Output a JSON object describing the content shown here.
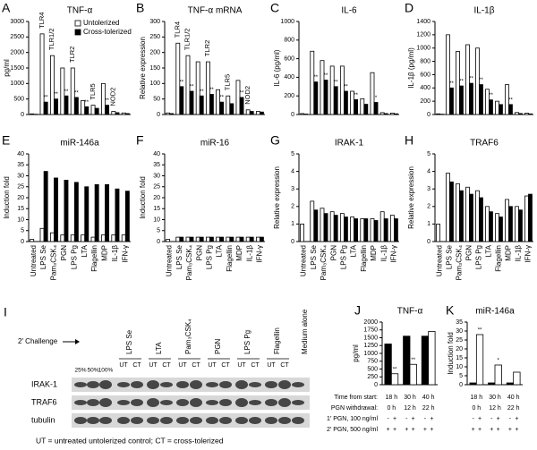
{
  "chart_data": [
    {
      "type": "bar",
      "panel": "A",
      "title": "TNF-α",
      "ylabel": "pg/ml",
      "ylim": [
        0,
        3000
      ],
      "yticks": [
        0,
        500,
        1000,
        1500,
        2000,
        2500,
        3000
      ],
      "categories": [
        null,
        null,
        null,
        null,
        null,
        null,
        null,
        null,
        null,
        null
      ],
      "legend": "top-right",
      "annotations": [
        "TLR4",
        "TLR1/2",
        "TLR2",
        "TLR5",
        "NOD2"
      ],
      "series": [
        {
          "name": "Untolerized",
          "color": "#ffffff",
          "values": [
            20,
            2600,
            1900,
            1500,
            1500,
            450,
            300,
            1000,
            100,
            50
          ]
        },
        {
          "name": "Cross-tolerized",
          "color": "#000000",
          "values": [
            10,
            400,
            500,
            600,
            550,
            250,
            200,
            300,
            60,
            30
          ],
          "significance": [
            null,
            "**",
            "**",
            "**",
            "**",
            "**",
            null,
            "**",
            null,
            null
          ]
        }
      ]
    },
    {
      "type": "bar",
      "panel": "B",
      "title": "TNF-α mRNA",
      "ylabel": "Relative expression",
      "ylim": [
        0,
        300
      ],
      "yticks": [
        0,
        50,
        100,
        150,
        200,
        250,
        300
      ],
      "categories": [
        null,
        null,
        null,
        null,
        null,
        null,
        null,
        null,
        null,
        null
      ],
      "annotations": [
        "TLR4",
        "TLR1/2",
        "TLR2",
        "TLR5",
        "NOD2"
      ],
      "series": [
        {
          "color": "#ffffff",
          "values": [
            5,
            230,
            190,
            170,
            170,
            80,
            60,
            110,
            15,
            10
          ]
        },
        {
          "color": "#000000",
          "values": [
            3,
            90,
            75,
            60,
            65,
            40,
            35,
            55,
            10,
            8
          ],
          "significance": [
            null,
            "**",
            "**",
            "**",
            "**",
            "**",
            null,
            "**",
            null,
            null
          ]
        }
      ]
    },
    {
      "type": "bar",
      "panel": "C",
      "title": "IL-6",
      "ylabel": "IL-6 (pg/ml)",
      "ylim": [
        0,
        1000
      ],
      "yticks": [
        0,
        200,
        400,
        600,
        800,
        1000
      ],
      "categories": [
        null,
        null,
        null,
        null,
        null,
        null,
        null,
        null,
        null,
        null
      ],
      "series": [
        {
          "color": "#ffffff",
          "values": [
            10,
            680,
            580,
            520,
            520,
            250,
            170,
            450,
            20,
            15
          ]
        },
        {
          "color": "#000000",
          "values": [
            5,
            350,
            370,
            300,
            250,
            160,
            110,
            130,
            10,
            8
          ],
          "significance": [
            null,
            "**",
            "**",
            "**",
            "**",
            "**",
            null,
            "*",
            null,
            null
          ]
        }
      ]
    },
    {
      "type": "bar",
      "panel": "D",
      "title": "IL-1β",
      "ylabel": "IL-1β (pg/ml)",
      "ylim": [
        0,
        1400
      ],
      "yticks": [
        0,
        200,
        400,
        600,
        800,
        1000,
        1200,
        1400
      ],
      "categories": [
        null,
        null,
        null,
        null,
        null,
        null,
        null,
        null,
        null,
        null
      ],
      "series": [
        {
          "color": "#ffffff",
          "values": [
            10,
            1200,
            950,
            1050,
            1000,
            380,
            200,
            450,
            30,
            20
          ]
        },
        {
          "color": "#000000",
          "values": [
            5,
            400,
            430,
            470,
            450,
            220,
            150,
            150,
            15,
            10
          ],
          "significance": [
            null,
            "**",
            "**",
            "**",
            "**",
            "**",
            null,
            "**",
            null,
            null
          ]
        }
      ]
    },
    {
      "type": "bar",
      "panel": "E",
      "title": "miR-146a",
      "ylabel": "Induction fold",
      "ylim": [
        0,
        40
      ],
      "yticks": [
        0,
        5,
        10,
        15,
        20,
        25,
        30,
        35,
        40
      ],
      "categories": [
        "Untreated",
        "LPS Se",
        "Pam₃CSK₄",
        "PGN",
        "LPS Pg",
        "LTA",
        "Flagellin",
        "MDP",
        "IL-1β",
        "IFN-γ"
      ],
      "series": [
        {
          "color": "#ffffff",
          "values": [
            1,
            6,
            4,
            3,
            3,
            3,
            2,
            3,
            3,
            3
          ]
        },
        {
          "color": "#000000",
          "values": [
            null,
            32,
            29,
            28,
            27,
            25,
            26,
            26,
            24,
            23
          ]
        }
      ]
    },
    {
      "type": "bar",
      "panel": "F",
      "title": "miR-16",
      "ylabel": "Induction fold",
      "ylim": [
        0,
        40
      ],
      "yticks": [
        0,
        5,
        10,
        15,
        20,
        25,
        30,
        35,
        40
      ],
      "categories": [
        "Untreated",
        "LPS Se",
        "Pam₃CSK₄",
        "PGN",
        "LPS Pg",
        "LTA",
        "Flagellin",
        "MDP",
        "IL-1β",
        "IFN-γ"
      ],
      "series": [
        {
          "color": "#ffffff",
          "values": [
            1,
            2,
            2,
            2,
            2,
            2,
            2,
            2,
            2,
            2
          ]
        },
        {
          "color": "#000000",
          "values": [
            null,
            2,
            2,
            2,
            2,
            2,
            2,
            2,
            2,
            2
          ]
        }
      ]
    },
    {
      "type": "bar",
      "panel": "G",
      "title": "IRAK-1",
      "ylabel": "Relative expression",
      "ylim": [
        0,
        5
      ],
      "yticks": [
        0,
        1,
        2,
        3,
        4,
        5
      ],
      "categories": [
        "Untreated",
        "LPS Se",
        "Pam₃CSK₄",
        "PGN",
        "LPS Pg",
        "LTA",
        "Flagellin",
        "MDP",
        "IL-1β",
        "IFN-γ"
      ],
      "series": [
        {
          "color": "#ffffff",
          "values": [
            1,
            2.3,
            1.9,
            1.7,
            1.6,
            1.4,
            1.3,
            1.3,
            1.7,
            1.5
          ]
        },
        {
          "color": "#000000",
          "values": [
            null,
            1.8,
            1.6,
            1.5,
            1.4,
            1.3,
            1.3,
            1.2,
            1.3,
            1.3
          ]
        }
      ]
    },
    {
      "type": "bar",
      "panel": "H",
      "title": "TRAF6",
      "ylabel": "Relative expression",
      "ylim": [
        0,
        5
      ],
      "yticks": [
        0,
        1,
        2,
        3,
        4,
        5
      ],
      "categories": [
        "Untreated",
        "LPS Se",
        "Pam₃CSK₄",
        "PGN",
        "LPS Pg",
        "LTA",
        "Flagellin",
        "MDP",
        "IL-1β",
        "IFN-γ"
      ],
      "series": [
        {
          "color": "#ffffff",
          "values": [
            1,
            3.9,
            3.3,
            3.1,
            2.9,
            2.0,
            1.6,
            2.4,
            2.0,
            2.6
          ]
        },
        {
          "color": "#000000",
          "values": [
            null,
            3.4,
            2.9,
            2.7,
            2.5,
            1.7,
            1.4,
            2.0,
            1.8,
            2.7
          ]
        }
      ]
    },
    {
      "type": "blot",
      "panel": "I",
      "challenge_label": "2′ Challenge",
      "dilutions": [
        "25%",
        "50%",
        "100%"
      ],
      "treatments": [
        {
          "name": "LPS Se",
          "lanes": [
            "UT",
            "CT"
          ]
        },
        {
          "name": "LTA",
          "lanes": [
            "UT",
            "CT"
          ]
        },
        {
          "name": "Pam₃CSK₄",
          "lanes": [
            "UT",
            "CT"
          ]
        },
        {
          "name": "PGN",
          "lanes": [
            "UT",
            "CT"
          ]
        },
        {
          "name": "LPS Pg",
          "lanes": [
            "UT",
            "CT"
          ]
        },
        {
          "name": "Flagellin",
          "lanes": [
            "UT",
            "CT"
          ]
        },
        {
          "name": "Medium alone",
          "lanes": []
        }
      ],
      "proteins": [
        "IRAK-1",
        "TRAF6",
        "tubulin"
      ],
      "footnote": "UT = untreated untolerized control; CT = cross-tolerized"
    },
    {
      "type": "bar",
      "panel": "J",
      "title": "TNF-α",
      "ylabel": "pg/ml",
      "ylim": [
        0,
        2000
      ],
      "yticks": [
        0,
        250,
        500,
        750,
        1000,
        1250,
        1500,
        1750,
        2000
      ],
      "categories": [
        null,
        null,
        null
      ],
      "series": [
        {
          "color": "#000000",
          "values": [
            1300,
            1550,
            1550
          ]
        },
        {
          "color": "#ffffff",
          "values": [
            350,
            650,
            1700
          ],
          "significance": [
            "**",
            "**",
            null
          ]
        }
      ],
      "conditions": [
        {
          "label": "Time from start:",
          "values": [
            "18 h",
            "30 h",
            "40 h"
          ]
        },
        {
          "label": "PGN withdrawal:",
          "values": [
            "0 h",
            "12 h",
            "22 h"
          ]
        },
        {
          "label": "1′ PGN, 100 ng/ml",
          "values": [
            "-",
            "+",
            "-",
            "+",
            "-",
            "+"
          ]
        },
        {
          "label": "2′ PGN, 500 ng/ml",
          "values": [
            "+",
            "+",
            "+",
            "+",
            "+",
            "+"
          ]
        }
      ]
    },
    {
      "type": "bar",
      "panel": "K",
      "title": "miR-146a",
      "ylabel": "Induction fold",
      "ylim": [
        0,
        35
      ],
      "yticks": [
        0,
        5,
        10,
        15,
        20,
        25,
        30,
        35
      ],
      "categories": [
        null,
        null,
        null
      ],
      "series": [
        {
          "color": "#000000",
          "values": [
            1,
            1,
            1
          ]
        },
        {
          "color": "#ffffff",
          "values": [
            28,
            11,
            7
          ],
          "significance": [
            "**",
            "*",
            null
          ]
        }
      ],
      "conditions": [
        {
          "values": [
            "18 h",
            "30 h",
            "40 h"
          ]
        },
        {
          "values": [
            "0 h",
            "12 h",
            "22 h"
          ]
        },
        {
          "values": [
            "-",
            "+",
            "-",
            "+",
            "-",
            "+"
          ]
        },
        {
          "values": [
            "+",
            "+",
            "+",
            "+",
            "+",
            "+"
          ]
        }
      ]
    }
  ]
}
